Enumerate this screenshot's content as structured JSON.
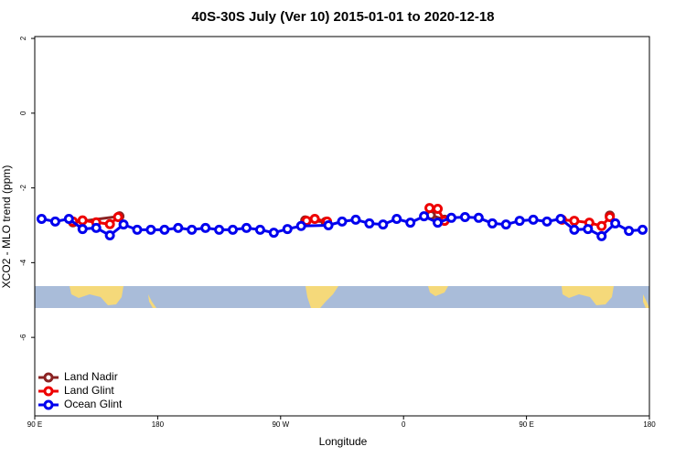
{
  "chart_data": {
    "type": "line",
    "title": "40S-30S July (Ver 10)   2015-01-01 to 2020-12-18",
    "x_label": "Longitude",
    "y_label": "XCO2 - MLO trend (ppm)",
    "xlim": [
      90,
      540
    ],
    "ylim": [
      -8.1,
      2.05
    ],
    "xticks": [
      {
        "value": 90,
        "label": "90 E"
      },
      {
        "value": 180,
        "label": "180"
      },
      {
        "value": 270,
        "label": "90 W"
      },
      {
        "value": 360,
        "label": "0"
      },
      {
        "value": 450,
        "label": "90 E"
      },
      {
        "value": 540,
        "label": "180"
      }
    ],
    "yticks": [
      2,
      0,
      -2,
      -4,
      -6
    ],
    "legend": "bottom-left",
    "series": [
      {
        "name": "Land Nadir",
        "color": "#8b2323",
        "x": [
          118,
          152,
          200,
          288,
          303,
          330,
          380,
          390,
          450,
          511
        ],
        "values": [
          -2.92,
          -2.76,
          null,
          -2.87,
          -2.91,
          null,
          -2.73,
          -2.85,
          null,
          -2.74
        ]
      },
      {
        "name": "Land Glint",
        "color": "#ee0000",
        "x": [
          118,
          125,
          135,
          145,
          151,
          200,
          289,
          295,
          304,
          330,
          379,
          385,
          390,
          450,
          476,
          485,
          496,
          505,
          511
        ],
        "values": [
          -2.9,
          -2.87,
          -2.92,
          -2.97,
          -2.78,
          null,
          -2.88,
          -2.83,
          -2.9,
          null,
          -2.54,
          -2.56,
          -2.88,
          null,
          -2.85,
          -2.88,
          -2.93,
          -3.02,
          -2.78
        ]
      },
      {
        "name": "Ocean Glint",
        "color": "#0000ee",
        "x": [
          95,
          105,
          115,
          125,
          135,
          145,
          155,
          165,
          175,
          185,
          195,
          205,
          215,
          225,
          235,
          245,
          255,
          265,
          275,
          285,
          305,
          315,
          325,
          335,
          345,
          355,
          365,
          375,
          385,
          395,
          405,
          415,
          425,
          435,
          445,
          455,
          465,
          475,
          485,
          495,
          505,
          515,
          525,
          535
        ],
        "values": [
          -2.83,
          -2.9,
          -2.83,
          -3.1,
          -3.07,
          -3.27,
          -2.98,
          -3.12,
          -3.12,
          -3.12,
          -3.07,
          -3.12,
          -3.07,
          -3.12,
          -3.12,
          -3.07,
          -3.12,
          -3.2,
          -3.1,
          -3.02,
          -3.0,
          -2.9,
          -2.85,
          -2.95,
          -2.98,
          -2.83,
          -2.93,
          -2.76,
          -2.93,
          -2.8,
          -2.78,
          -2.8,
          -2.95,
          -2.98,
          -2.88,
          -2.85,
          -2.9,
          -2.83,
          -3.12,
          -3.1,
          -3.29,
          -2.95,
          -3.15,
          -3.12
        ]
      }
    ]
  }
}
